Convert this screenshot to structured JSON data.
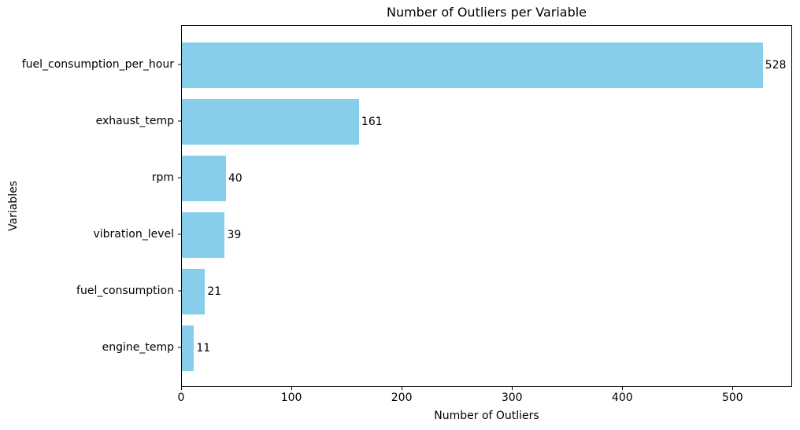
{
  "chart_data": {
    "type": "bar",
    "orientation": "horizontal",
    "title": "Number of Outliers per Variable",
    "xlabel": "Number of Outliers",
    "ylabel": "Variables",
    "categories": [
      "fuel_consumption_per_hour",
      "exhaust_temp",
      "rpm",
      "vibration_level",
      "fuel_consumption",
      "engine_temp"
    ],
    "values": [
      528,
      161,
      40,
      39,
      21,
      11
    ],
    "bar_labels": [
      "528",
      "161",
      "40",
      "39",
      "21",
      "11"
    ],
    "xlim": [
      0,
      554
    ],
    "xticks": [
      0,
      100,
      200,
      300,
      400,
      500
    ],
    "ylim": [
      -0.69,
      5.69
    ],
    "bar_height_units": 0.8,
    "bar_color": "#87CEEB",
    "text_color": "#000000",
    "frame_color": "#000000",
    "background": "#ffffff",
    "grid": false,
    "legend": false
  }
}
